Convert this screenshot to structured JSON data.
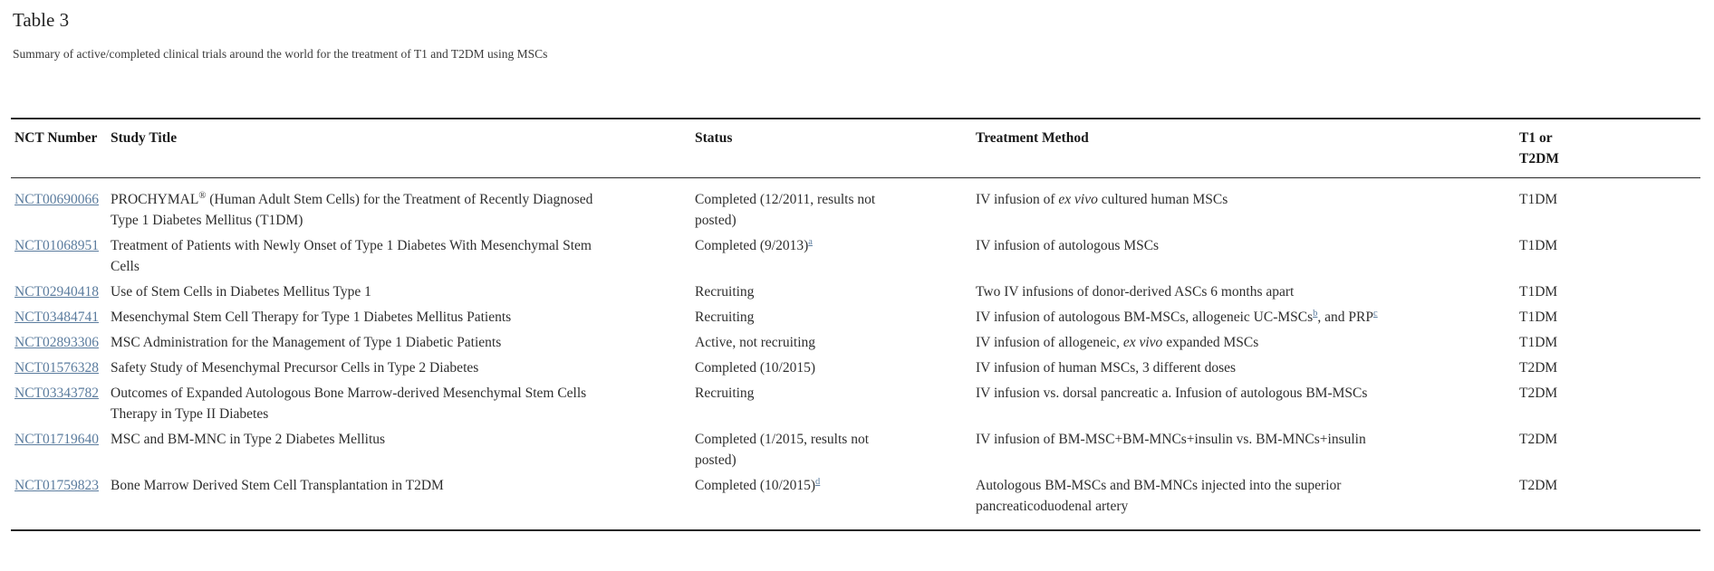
{
  "page": {
    "title": "Table 3",
    "caption": "Summary of active/completed clinical trials around the world for the treatment of T1 and T2DM using MSCs"
  },
  "colors": {
    "link": "#5b7c9e",
    "text": "#2e2e2e",
    "border": "#262626",
    "background": "#ffffff"
  },
  "table": {
    "columns": [
      "NCT Number",
      "Study Title",
      "Status",
      "Treatment Method",
      "T1 or T2DM"
    ],
    "rows": [
      {
        "nct": "NCT00690066",
        "title": [
          {
            "t": "PROCHYMAL"
          },
          {
            "t": "®",
            "sup": true
          },
          {
            "t": " (Human Adult Stem Cells) for the Treatment of Recently Diagnosed Type 1 Diabetes Mellitus (T1DM)"
          }
        ],
        "status": [
          {
            "t": "Completed (12/2011, results not posted)"
          }
        ],
        "treatment": [
          {
            "t": "IV infusion of "
          },
          {
            "t": "ex vivo",
            "i": true
          },
          {
            "t": " cultured human MSCs"
          }
        ],
        "type": "T1DM"
      },
      {
        "nct": "NCT01068951",
        "title": [
          {
            "t": "Treatment of Patients with Newly Onset of Type 1 Diabetes With Mesenchymal Stem Cells"
          }
        ],
        "status": [
          {
            "t": "Completed (9/2013)"
          },
          {
            "t": "a",
            "sup": true,
            "link": true
          }
        ],
        "treatment": [
          {
            "t": "IV infusion of autologous MSCs"
          }
        ],
        "type": "T1DM"
      },
      {
        "nct": "NCT02940418",
        "title": [
          {
            "t": "Use of Stem Cells in Diabetes Mellitus Type 1"
          }
        ],
        "status": [
          {
            "t": "Recruiting"
          }
        ],
        "treatment": [
          {
            "t": "Two IV infusions of donor-derived ASCs 6 months apart"
          }
        ],
        "type": "T1DM"
      },
      {
        "nct": "NCT03484741",
        "title": [
          {
            "t": "Mesenchymal Stem Cell Therapy for Type 1 Diabetes Mellitus Patients"
          }
        ],
        "status": [
          {
            "t": "Recruiting"
          }
        ],
        "treatment": [
          {
            "t": "IV infusion of autologous BM-MSCs, allogeneic UC-MSCs"
          },
          {
            "t": "b",
            "sup": true,
            "link": true
          },
          {
            "t": ", and PRP"
          },
          {
            "t": "c",
            "sup": true,
            "link": true
          }
        ],
        "type": "T1DM"
      },
      {
        "nct": "NCT02893306",
        "title": [
          {
            "t": "MSC Administration for the Management of Type 1 Diabetic Patients"
          }
        ],
        "status": [
          {
            "t": "Active, not recruiting"
          }
        ],
        "treatment": [
          {
            "t": "IV infusion of allogeneic, "
          },
          {
            "t": "ex vivo",
            "i": true
          },
          {
            "t": " expanded MSCs"
          }
        ],
        "type": "T1DM"
      },
      {
        "nct": "NCT01576328",
        "title": [
          {
            "t": "Safety Study of Mesenchymal Precursor Cells in Type 2 Diabetes"
          }
        ],
        "status": [
          {
            "t": "Completed (10/2015)"
          }
        ],
        "treatment": [
          {
            "t": "IV infusion of human MSCs, 3 different doses"
          }
        ],
        "type": "T2DM"
      },
      {
        "nct": "NCT03343782",
        "title": [
          {
            "t": "Outcomes of Expanded Autologous Bone Marrow-derived Mesenchymal Stem Cells Therapy in Type II Diabetes"
          }
        ],
        "status": [
          {
            "t": "Recruiting"
          }
        ],
        "treatment": [
          {
            "t": "IV infusion vs. dorsal pancreatic a. Infusion of autologous BM-MSCs"
          }
        ],
        "type": "T2DM"
      },
      {
        "nct": "NCT01719640",
        "title": [
          {
            "t": "MSC and BM-MNC in Type 2 Diabetes Mellitus"
          }
        ],
        "status": [
          {
            "t": "Completed (1/2015, results not posted)"
          }
        ],
        "treatment": [
          {
            "t": "IV infusion of BM-MSC+BM-MNCs+insulin vs. BM-MNCs+insulin"
          }
        ],
        "type": "T2DM"
      },
      {
        "nct": "NCT01759823",
        "title": [
          {
            "t": "Bone Marrow Derived Stem Cell Transplantation in T2DM"
          }
        ],
        "status": [
          {
            "t": "Completed (10/2015)"
          },
          {
            "t": "d",
            "sup": true,
            "link": true
          }
        ],
        "treatment": [
          {
            "t": "Autologous BM-MSCs and BM-MNCs injected into the superior pancreaticoduodenal artery"
          }
        ],
        "type": "T2DM"
      }
    ]
  }
}
